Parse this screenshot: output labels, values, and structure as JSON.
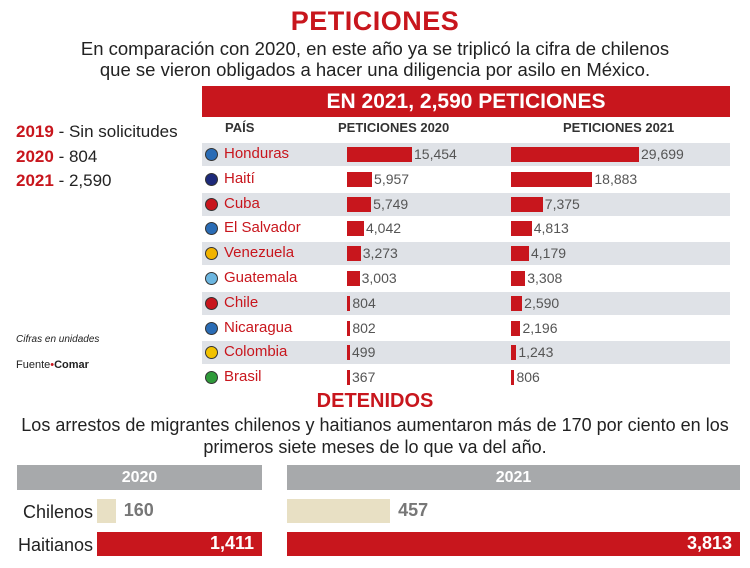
{
  "title": "PETICIONES",
  "subtitle": [
    "En comparación con 2020, en este año ya se triplicó la cifra de chilenos",
    "que se vieron obligados a hacer una diligencia por asilo en México."
  ],
  "chile_summary": [
    {
      "year": "2019",
      "text": "- Sin solicitudes"
    },
    {
      "year": "2020",
      "text": "- 804"
    },
    {
      "year": "2021",
      "text": "- 2,590"
    }
  ],
  "note": "Cifras en unidades",
  "source": {
    "label": "Fuente",
    "name": "Comar"
  },
  "chart_data": [
    {
      "type": "bar",
      "title": "EN 2021, 2,590 PETICIONES",
      "headers": {
        "country": "PAÍS",
        "s2020": "PETICIONES 2020",
        "s2021": "PETICIONES 2021"
      },
      "categories": [
        "Honduras",
        "Haití",
        "Cuba",
        "El Salvador",
        "Venezuela",
        "Guatemala",
        "Chile",
        "Nicaragua",
        "Colombia",
        "Brasil"
      ],
      "series": [
        {
          "name": "PETICIONES 2020",
          "values": [
            15454,
            5957,
            5749,
            4042,
            3273,
            3003,
            804,
            802,
            499,
            367
          ],
          "labels": [
            "15,454",
            "5,957",
            "5,749",
            "4,042",
            "3,273",
            "3,003",
            "804",
            "802",
            "499",
            "367"
          ]
        },
        {
          "name": "PETICIONES 2021",
          "values": [
            29699,
            18883,
            7375,
            4813,
            4179,
            3308,
            2590,
            2196,
            1243,
            806
          ],
          "labels": [
            "29,699",
            "18,883",
            "7,375",
            "4,813",
            "4,179",
            "3,308",
            "2,590",
            "2,196",
            "1,243",
            "806"
          ]
        }
      ],
      "flag_colors": [
        "#2a6cb5",
        "#1d2a7a",
        "#c8161d",
        "#2a6cb5",
        "#f2b400",
        "#6cb6e0",
        "#c8161d",
        "#2a6cb5",
        "#f2c200",
        "#2f9a3a"
      ],
      "color": "#c8161d"
    },
    {
      "type": "bar",
      "title": "DETENIDOS",
      "subtitle": [
        "Los arrestos de migrantes chilenos y haitianos aumentaron más de 170 por ciento en los",
        "primeros siete meses de lo que va del año."
      ],
      "categories": [
        "Chilenos",
        "Haitianos"
      ],
      "series": [
        {
          "name": "2020",
          "values": [
            160,
            1411
          ],
          "labels": [
            "160",
            "1,411"
          ]
        },
        {
          "name": "2021",
          "values": [
            457,
            3813
          ],
          "labels": [
            "457",
            "3,813"
          ]
        }
      ],
      "colors": {
        "Chilenos": "#e8e0c4",
        "Haitianos": "#c8161d",
        "header": "#a7a9ab"
      }
    }
  ]
}
